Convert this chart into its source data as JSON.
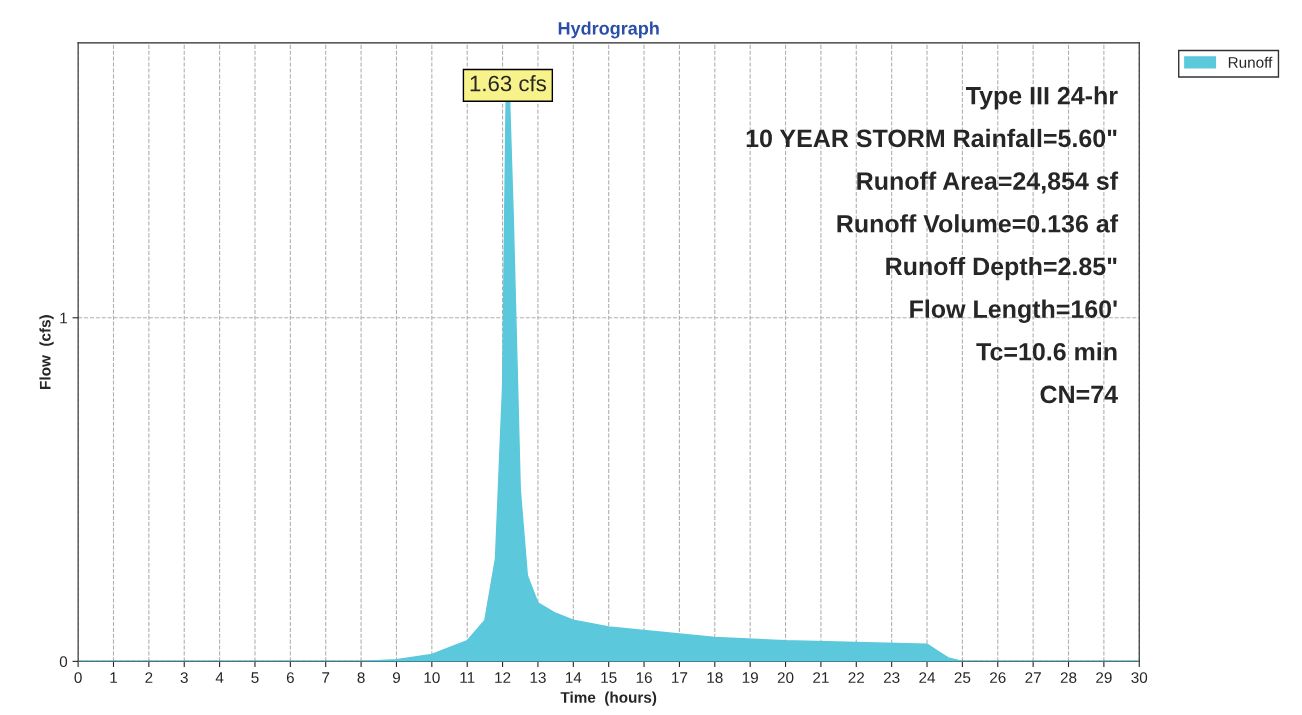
{
  "chart_data": {
    "type": "area",
    "title": "Hydrograph",
    "xlabel": "Time  (hours)",
    "ylabel": "Flow  (cfs)",
    "x": [
      0,
      5,
      8,
      9,
      10,
      11,
      11.5,
      11.8,
      12.0,
      12.1,
      12.2,
      12.3,
      12.4,
      12.5,
      12.7,
      13,
      13.5,
      14,
      15,
      16,
      17,
      18,
      20,
      22,
      24,
      24.3,
      24.6,
      25,
      30
    ],
    "series": [
      {
        "name": "Runoff",
        "color": "#5bc8dc",
        "values": [
          0,
          0,
          0,
          0.005,
          0.02,
          0.06,
          0.12,
          0.3,
          0.8,
          1.63,
          1.63,
          1.3,
          0.9,
          0.5,
          0.25,
          0.17,
          0.14,
          0.12,
          0.1,
          0.09,
          0.08,
          0.07,
          0.06,
          0.055,
          0.05,
          0.03,
          0.01,
          0,
          0
        ]
      }
    ],
    "xlim": [
      0,
      30
    ],
    "ylim": [
      0,
      1.8
    ],
    "xticks": [
      0,
      1,
      2,
      3,
      4,
      5,
      6,
      7,
      8,
      9,
      10,
      11,
      12,
      13,
      14,
      15,
      16,
      17,
      18,
      19,
      20,
      21,
      22,
      23,
      24,
      25,
      26,
      27,
      28,
      29,
      30
    ],
    "yticks": [
      0,
      1
    ],
    "grid": true,
    "legend": "top right",
    "annotations": [
      {
        "text": "1.63 cfs",
        "x": 12.15,
        "y": 1.63
      },
      "Type III 24-hr",
      "10 YEAR STORM Rainfall=5.60\"",
      "Runoff Area=24,854 sf",
      "Runoff Volume=0.136 af",
      "Runoff Depth=2.85\"",
      "Flow Length=160'",
      "Tc=10.6 min",
      "CN=74"
    ]
  }
}
